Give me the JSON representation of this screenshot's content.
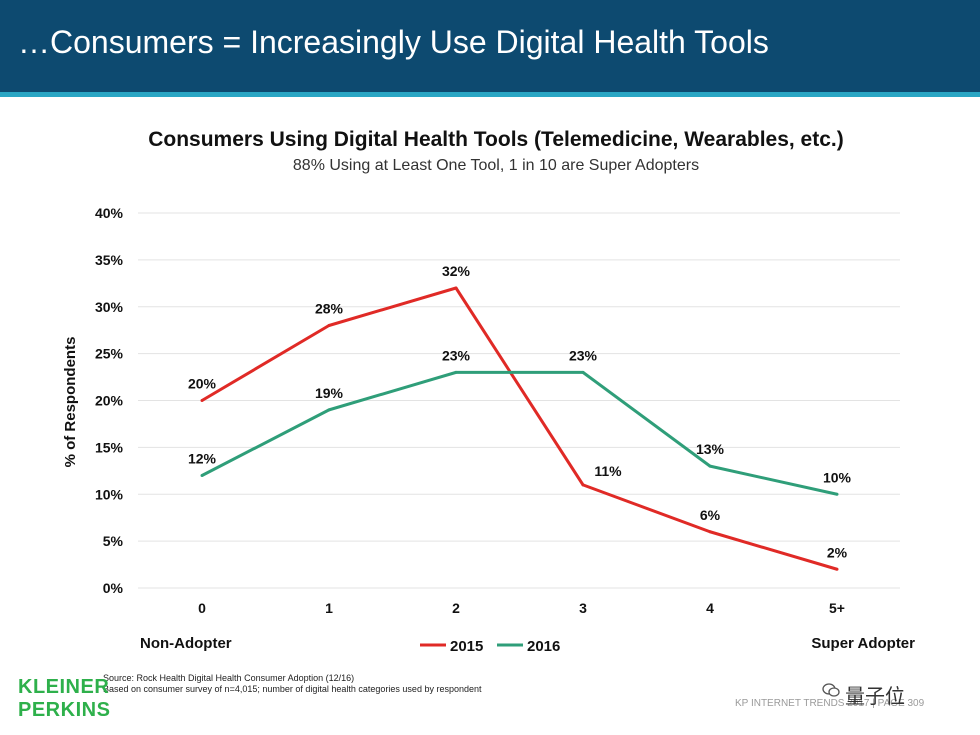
{
  "header": {
    "title": "…Consumers = Increasingly Use Digital Health Tools"
  },
  "chart_data": {
    "type": "line",
    "title": "Consumers Using Digital Health Tools (Telemedicine, Wearables, etc.)",
    "subtitle": "88% Using at Least One Tool,  1 in 10 are Super Adopters",
    "ylabel": "% of Respondents",
    "xlabel": "",
    "categories": [
      "0",
      "1",
      "2",
      "3",
      "4",
      "5+"
    ],
    "yticks": [
      "0%",
      "5%",
      "10%",
      "15%",
      "20%",
      "25%",
      "30%",
      "35%",
      "40%"
    ],
    "ylim": [
      0,
      40
    ],
    "grid": true,
    "legend": "bottom-center",
    "series": [
      {
        "name": "2015",
        "color": "#e02a26",
        "values": [
          20,
          28,
          32,
          11,
          6,
          2
        ],
        "labels": [
          "20%",
          "28%",
          "32%",
          "11%",
          "6%",
          "2%"
        ]
      },
      {
        "name": "2016",
        "color": "#2f9e79",
        "values": [
          12,
          19,
          23,
          23,
          13,
          10
        ],
        "labels": [
          "12%",
          "19%",
          "23%",
          "23%",
          "13%",
          "10%"
        ]
      }
    ],
    "annotations": {
      "left": "Non-Adopter",
      "right": "Super Adopter"
    }
  },
  "source": {
    "line1": "Source: Rock Health Digital Health Consumer Adoption (12/16)",
    "line2": "Based on consumer survey of n=4,015; number of digital health categories used by respondent"
  },
  "logo": {
    "line1": "KLEINER",
    "line2": "PERKINS"
  },
  "footer": {
    "text": "KP INTERNET TRENDS 2017  |  PAGE 309"
  },
  "watermark": {
    "text": "量子位"
  }
}
